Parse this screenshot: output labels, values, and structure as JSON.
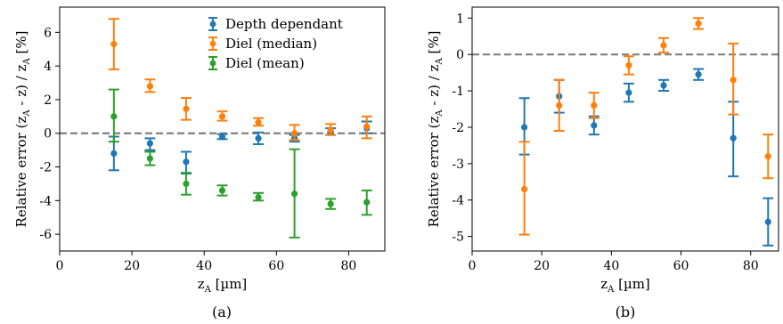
{
  "colors": {
    "depth": "#1f77b4",
    "median": "#ff7f0e",
    "mean": "#2ca02c",
    "reference_line": "#808080"
  },
  "chart_data": [
    {
      "panel_label": "(a)",
      "type": "scatter",
      "xlabel_main": "z",
      "xlabel_sub": "A",
      "xlabel_unit": " [µm]",
      "ylabel_text": "Relative error (zₐ - z) / zₐ [%]",
      "ylabel_parts": [
        "Relative error (z",
        "A",
        " - z) / z",
        "A",
        " [%]"
      ],
      "xlim": [
        0,
        90
      ],
      "ylim": [
        -7,
        7.5
      ],
      "xticks": [
        0,
        20,
        40,
        60,
        80
      ],
      "yticks": [
        -6,
        -4,
        -2,
        0,
        2,
        4,
        6
      ],
      "reference_y": 0,
      "legend": "top-right",
      "series": [
        {
          "name": "Depth dependant",
          "color_key": "depth",
          "points": [
            {
              "x": 15,
              "y": -1.2,
              "lo": -2.2,
              "hi": -0.2
            },
            {
              "x": 25,
              "y": -0.6,
              "lo": -1.0,
              "hi": -0.3
            },
            {
              "x": 35,
              "y": -1.7,
              "lo": -2.4,
              "hi": -1.1
            },
            {
              "x": 45,
              "y": -0.2,
              "lo": -0.35,
              "hi": -0.05
            },
            {
              "x": 55,
              "y": -0.3,
              "lo": -0.65,
              "hi": 0.05
            },
            {
              "x": 65,
              "y": -0.3,
              "lo": -0.5,
              "hi": -0.1
            },
            {
              "x": 75,
              "y": 0.1,
              "lo": -0.1,
              "hi": 0.3
            },
            {
              "x": 85,
              "y": 0.3,
              "lo": 0.0,
              "hi": 0.7
            }
          ]
        },
        {
          "name": "Diel (median)",
          "color_key": "median",
          "points": [
            {
              "x": 15,
              "y": 5.3,
              "lo": 3.8,
              "hi": 6.8
            },
            {
              "x": 25,
              "y": 2.8,
              "lo": 2.45,
              "hi": 3.2
            },
            {
              "x": 35,
              "y": 1.45,
              "lo": 0.8,
              "hi": 2.1
            },
            {
              "x": 45,
              "y": 1.0,
              "lo": 0.75,
              "hi": 1.3
            },
            {
              "x": 55,
              "y": 0.65,
              "lo": 0.45,
              "hi": 0.9
            },
            {
              "x": 65,
              "y": 0.0,
              "lo": -0.4,
              "hi": 0.5
            },
            {
              "x": 75,
              "y": 0.2,
              "lo": -0.1,
              "hi": 0.55
            },
            {
              "x": 85,
              "y": 0.4,
              "lo": -0.3,
              "hi": 1.0
            }
          ]
        },
        {
          "name": "Diel (mean)",
          "color_key": "mean",
          "points": [
            {
              "x": 15,
              "y": 1.0,
              "lo": -0.5,
              "hi": 2.6
            },
            {
              "x": 25,
              "y": -1.5,
              "lo": -1.9,
              "hi": -1.1
            },
            {
              "x": 35,
              "y": -3.0,
              "lo": -3.65,
              "hi": -2.35
            },
            {
              "x": 45,
              "y": -3.4,
              "lo": -3.7,
              "hi": -3.1
            },
            {
              "x": 55,
              "y": -3.8,
              "lo": -4.0,
              "hi": -3.55
            },
            {
              "x": 65,
              "y": -3.6,
              "lo": -6.2,
              "hi": -0.95
            },
            {
              "x": 75,
              "y": -4.2,
              "lo": -4.5,
              "hi": -3.9
            },
            {
              "x": 85,
              "y": -4.1,
              "lo": -4.85,
              "hi": -3.4
            }
          ]
        }
      ]
    },
    {
      "panel_label": "(b)",
      "type": "scatter",
      "xlabel_main": "z",
      "xlabel_sub": "A",
      "xlabel_unit": " [µm]",
      "ylabel_text": "Relative error (zₐ - z) / zₐ [%]",
      "ylabel_parts": [
        "Relative error (z",
        "A",
        " - z) / z",
        "A",
        " [%]"
      ],
      "xlim": [
        0,
        88
      ],
      "ylim": [
        -5.4,
        1.3
      ],
      "xticks": [
        0,
        20,
        40,
        60,
        80
      ],
      "yticks": [
        -5,
        -4,
        -3,
        -2,
        -1,
        0,
        1
      ],
      "reference_y": 0,
      "legend": "none",
      "series": [
        {
          "name": "",
          "color_key": "depth",
          "points": [
            {
              "x": 15,
              "y": -2.0,
              "lo": -2.75,
              "hi": -1.2
            },
            {
              "x": 25,
              "y": -1.15,
              "lo": -1.6,
              "hi": -0.7
            },
            {
              "x": 35,
              "y": -1.95,
              "lo": -2.2,
              "hi": -1.7
            },
            {
              "x": 45,
              "y": -1.05,
              "lo": -1.3,
              "hi": -0.8
            },
            {
              "x": 55,
              "y": -0.85,
              "lo": -1.0,
              "hi": -0.7
            },
            {
              "x": 65,
              "y": -0.55,
              "lo": -0.7,
              "hi": -0.4
            },
            {
              "x": 75,
              "y": -2.3,
              "lo": -3.35,
              "hi": -1.3
            },
            {
              "x": 85,
              "y": -4.6,
              "lo": -5.25,
              "hi": -3.95
            }
          ]
        },
        {
          "name": "",
          "color_key": "median",
          "points": [
            {
              "x": 15,
              "y": -3.7,
              "lo": -4.95,
              "hi": -2.4
            },
            {
              "x": 25,
              "y": -1.4,
              "lo": -2.1,
              "hi": -0.7
            },
            {
              "x": 35,
              "y": -1.4,
              "lo": -1.75,
              "hi": -1.05
            },
            {
              "x": 45,
              "y": -0.3,
              "lo": -0.55,
              "hi": -0.05
            },
            {
              "x": 55,
              "y": 0.25,
              "lo": 0.05,
              "hi": 0.45
            },
            {
              "x": 65,
              "y": 0.85,
              "lo": 0.7,
              "hi": 1.0
            },
            {
              "x": 75,
              "y": -0.7,
              "lo": -1.65,
              "hi": 0.3
            },
            {
              "x": 85,
              "y": -2.8,
              "lo": -3.4,
              "hi": -2.2
            }
          ]
        }
      ]
    }
  ]
}
